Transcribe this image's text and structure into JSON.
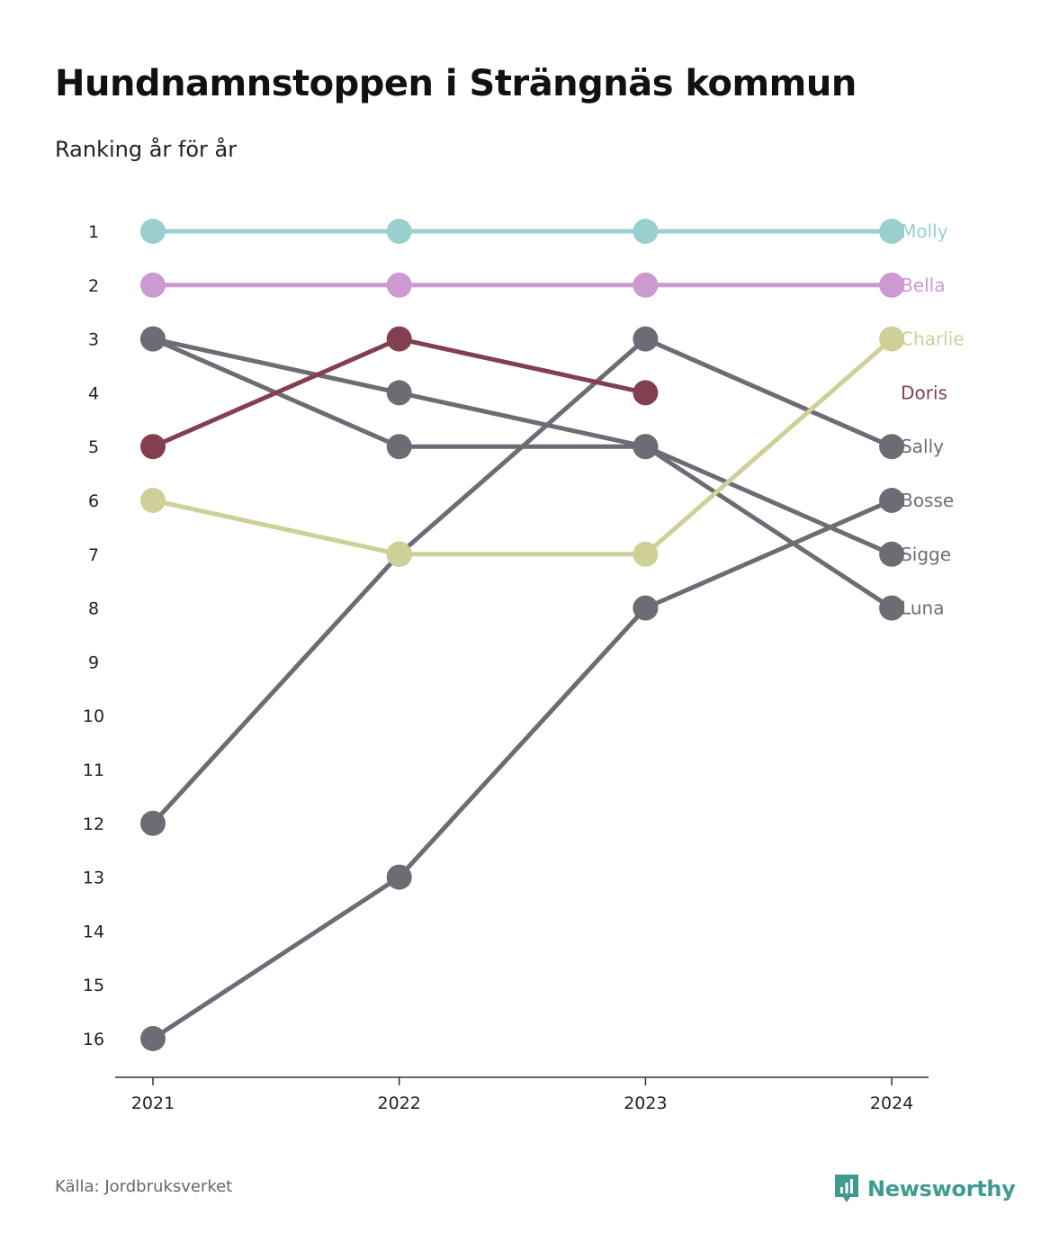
{
  "header": {
    "title": "Hundnamnstoppen i Strängnäs kommun",
    "subtitle": "Ranking år för år"
  },
  "footer": {
    "source": "Källa: Jordbruksverket",
    "brand": "Newsworthy",
    "brand_color": "#3f9a90",
    "brand_icon": "bar-chart-icon"
  },
  "chart_data": {
    "type": "line",
    "subtype": "bump",
    "x": [
      "2021",
      "2022",
      "2023",
      "2024"
    ],
    "y_ticks": [
      1,
      2,
      3,
      4,
      5,
      6,
      7,
      8,
      9,
      10,
      11,
      12,
      13,
      14,
      15,
      16
    ],
    "ylim": [
      1,
      16
    ],
    "y_inverted": true,
    "grid": false,
    "legend": "direct-labels-right",
    "series": [
      {
        "name": "Sigge",
        "values": [
          3,
          5,
          5,
          7
        ],
        "color": "#6d6c75"
      },
      {
        "name": "Luna",
        "values": [
          3,
          4,
          5,
          8
        ],
        "color": "#6d6c75"
      },
      {
        "name": "Sally",
        "values": [
          12,
          7,
          3,
          5
        ],
        "color": "#6d6c75"
      },
      {
        "name": "Bosse",
        "values": [
          16,
          13,
          8,
          6
        ],
        "color": "#6d6c75"
      },
      {
        "name": "Charlie",
        "values": [
          6,
          7,
          7,
          3
        ],
        "color": "#cfcf98"
      },
      {
        "name": "Doris",
        "values": [
          5,
          3,
          4,
          null
        ],
        "color": "#833f52"
      },
      {
        "name": "Bella",
        "values": [
          2,
          2,
          2,
          2
        ],
        "color": "#cc99d0"
      },
      {
        "name": "Molly",
        "values": [
          1,
          1,
          1,
          1
        ],
        "color": "#99cfcd"
      }
    ]
  }
}
